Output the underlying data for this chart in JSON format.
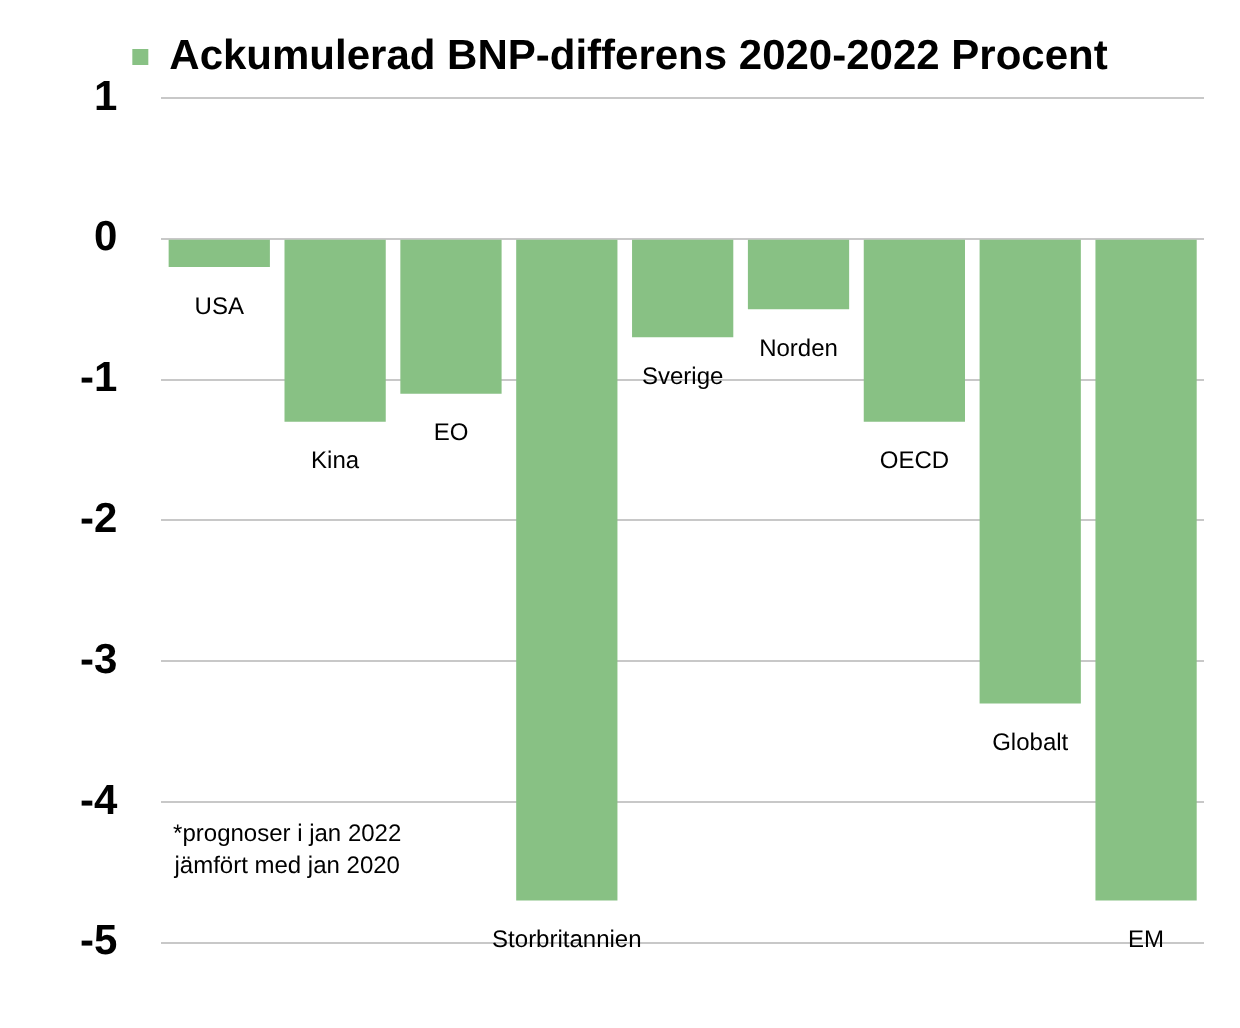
{
  "chart_data": {
    "type": "bar",
    "categories": [
      "USA",
      "Kina",
      "EO",
      "Storbritannien",
      "Sverige",
      "Norden",
      "OECD",
      "Globalt",
      "EM"
    ],
    "series": [
      {
        "name": "Ackumulerad BNP-differens 2020-2022 Procent",
        "color": "#88c184",
        "values": [
          -0.2,
          -1.3,
          -1.1,
          -4.7,
          -0.7,
          -0.5,
          -1.3,
          -3.3,
          -4.7
        ]
      }
    ],
    "ylim": [
      -5,
      1
    ],
    "yticks": [
      -5,
      -4,
      -3,
      -2,
      -1,
      0,
      1
    ],
    "grid": "y",
    "legend": "top",
    "annotations": [
      "*prognoser i jan 2022 jämfört med jan 2020"
    ]
  }
}
